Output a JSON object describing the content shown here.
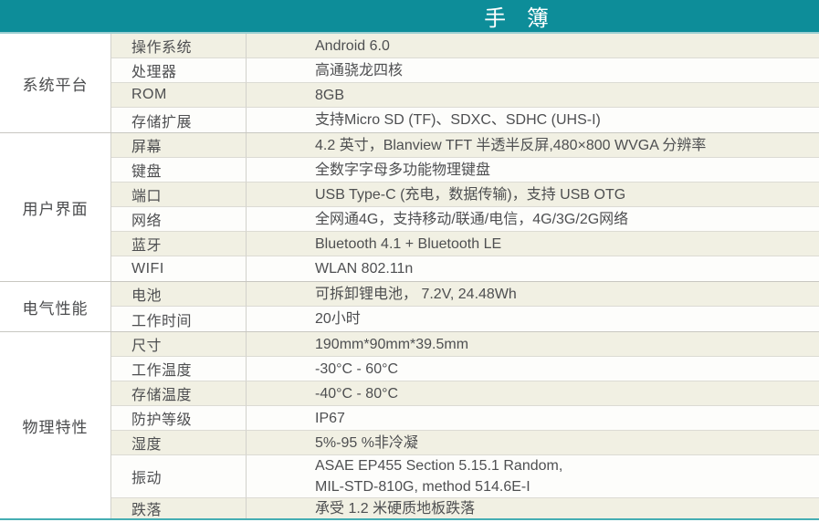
{
  "page": {
    "title": "手 簿"
  },
  "colors": {
    "header_teal": "#0d8d99",
    "bottom_accent": "#45aeb3",
    "row_beige": "#f1f0e3",
    "row_white": "#fdfdfb",
    "text": "#4e4f51"
  },
  "table": {
    "sections": [
      {
        "group": "系统平台",
        "rows": [
          {
            "label": "操作系统",
            "value": "Android 6.0"
          },
          {
            "label": "处理器",
            "value": "高通骁龙四核"
          },
          {
            "label": "ROM",
            "value": "8GB"
          },
          {
            "label": "存储扩展",
            "value": "支持Micro SD (TF)、SDXC、SDHC (UHS-I)"
          }
        ]
      },
      {
        "group": "用户界面",
        "rows": [
          {
            "label": "屏幕",
            "value": "4.2 英寸，Blanview TFT 半透半反屏,480×800 WVGA 分辨率"
          },
          {
            "label": "键盘",
            "value": "全数字字母多功能物理键盘"
          },
          {
            "label": "端口",
            "value": "USB Type-C (充电，数据传输)，支持 USB OTG"
          },
          {
            "label": "网络",
            "value": "全网通4G，支持移动/联通/电信，4G/3G/2G网络"
          },
          {
            "label": "蓝牙",
            "value": "Bluetooth 4.1 + Bluetooth LE"
          },
          {
            "label": "WIFI",
            "value": "WLAN 802.11n"
          }
        ]
      },
      {
        "group": "电气性能",
        "rows": [
          {
            "label": "电池",
            "value": "可拆卸锂电池， 7.2V, 24.48Wh"
          },
          {
            "label": "工作时间",
            "value": "20小时"
          }
        ]
      },
      {
        "group": "物理特性",
        "rows": [
          {
            "label": "尺寸",
            "value": "190mm*90mm*39.5mm"
          },
          {
            "label": "工作温度",
            "value": "-30°C - 60°C"
          },
          {
            "label": "存储温度",
            "value": "-40°C - 80°C"
          },
          {
            "label": "防护等级",
            "value": "IP67"
          },
          {
            "label": "湿度",
            "value": "5%-95 %非冷凝"
          },
          {
            "label": "振动",
            "value": "ASAE EP455 Section 5.15.1 Random,\nMIL-STD-810G, method 514.6E-I"
          },
          {
            "label": "跌落",
            "value": "承受 1.2 米硬质地板跌落"
          }
        ]
      }
    ]
  }
}
